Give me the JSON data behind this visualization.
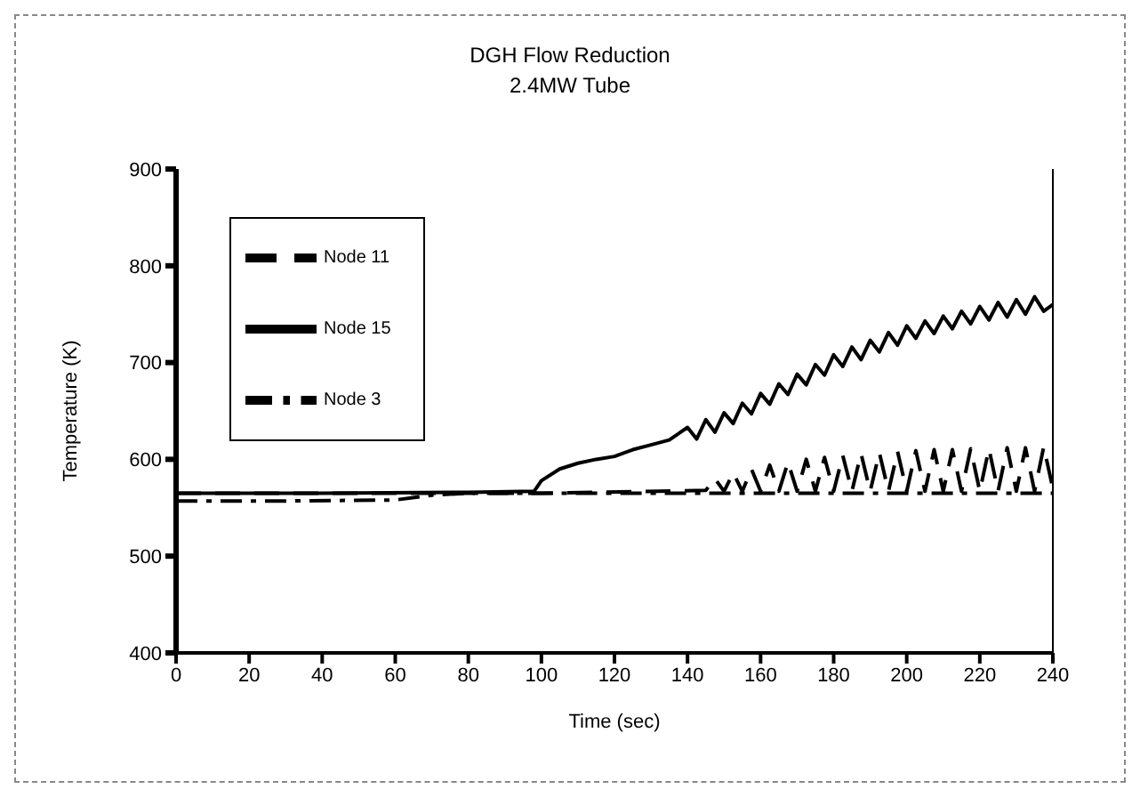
{
  "chart_data": {
    "type": "line",
    "title": "DGH Flow Reduction",
    "subtitle": "2.4MW Tube",
    "xlabel": "Time (sec)",
    "ylabel": "Temperature (K)",
    "xlim": [
      0,
      240
    ],
    "xticks": [
      0,
      20,
      40,
      60,
      80,
      100,
      120,
      140,
      160,
      180,
      200,
      220,
      240
    ],
    "ylim": [
      400,
      900
    ],
    "yticks": [
      400,
      500,
      600,
      700,
      800,
      900
    ],
    "grid": false,
    "legend": "top left",
    "marker": "none",
    "series": [
      {
        "name": "Node 15",
        "color": "#000000",
        "line_style": "solid",
        "x": [
          0,
          40,
          80,
          98,
          100,
          105,
          110,
          115,
          120,
          125,
          130,
          135,
          140,
          142.5,
          145,
          147.5,
          150,
          152.5,
          155,
          157.5,
          160,
          162.5,
          165,
          167.5,
          170,
          172.5,
          175,
          177.5,
          180,
          182.5,
          185,
          187.5,
          190,
          192.5,
          195,
          197.5,
          200,
          202.5,
          205,
          207.5,
          210,
          212.5,
          215,
          217.5,
          220,
          222.5,
          225,
          227.5,
          230,
          232.5,
          235,
          237.5,
          240
        ],
        "values": [
          565,
          565,
          566,
          567,
          578,
          590,
          596,
          600,
          603,
          610,
          615,
          620,
          633,
          621,
          641,
          628,
          648,
          637,
          658,
          647,
          668,
          657,
          678,
          667,
          688,
          677,
          698,
          687,
          708,
          696,
          716,
          703,
          723,
          711,
          731,
          718,
          738,
          725,
          743,
          730,
          748,
          735,
          753,
          740,
          758,
          744,
          762,
          747,
          765,
          750,
          768,
          753,
          760
        ]
      },
      {
        "name": "Node 11",
        "color": "#000000",
        "line_style": "dashed",
        "x": [
          0,
          60,
          100,
          145,
          147.5,
          150,
          152.5,
          155,
          157.5,
          160,
          162.5,
          165,
          167.5,
          170,
          172.5,
          175,
          177.5,
          180,
          182.5,
          185,
          187.5,
          190,
          192.5,
          195,
          197.5,
          200,
          202.5,
          205,
          207.5,
          210,
          212.5,
          215,
          217.5,
          220,
          222.5,
          225,
          227.5,
          230,
          232.5,
          235,
          237.5,
          240
        ],
        "values": [
          565,
          565,
          565,
          568,
          580,
          567,
          586,
          567,
          590,
          567,
          594,
          567,
          597,
          567,
          600,
          567,
          602,
          567,
          604,
          567,
          606,
          567,
          607,
          567,
          608,
          567,
          609,
          567,
          610,
          567,
          610,
          567,
          611,
          567,
          611,
          567,
          612,
          567,
          612,
          567,
          613,
          570
        ]
      },
      {
        "name": "Node 3",
        "color": "#000000",
        "line_style": "dashdot",
        "x": [
          0,
          30,
          60,
          70,
          80,
          120,
          180,
          240
        ],
        "values": [
          557,
          557,
          558,
          563,
          565,
          565,
          565,
          565
        ]
      }
    ]
  }
}
